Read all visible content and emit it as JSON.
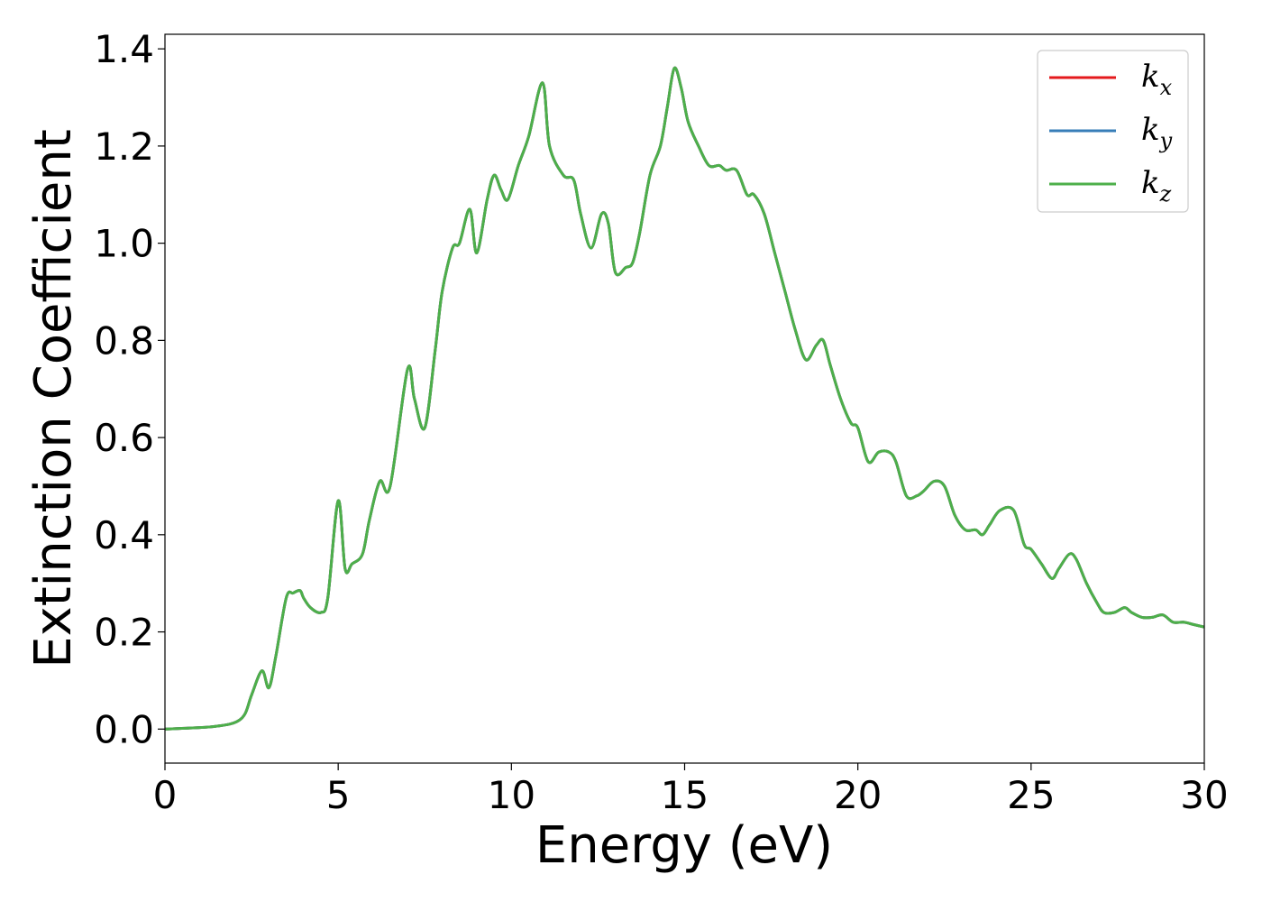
{
  "chart_data": {
    "type": "line",
    "title": "",
    "xlabel": "Energy (eV)",
    "ylabel": "Extinction Coefficient",
    "xlim": [
      0,
      30
    ],
    "ylim": [
      -0.07,
      1.43
    ],
    "xticks": [
      "0",
      "5",
      "10",
      "15",
      "20",
      "25",
      "30"
    ],
    "yticks": [
      "0.0",
      "0.2",
      "0.4",
      "0.6",
      "0.8",
      "1.0",
      "1.2",
      "1.4"
    ],
    "grid": false,
    "legend_position": "top-right",
    "series": [
      {
        "name": "k",
        "subscript": "x",
        "color": "#e41a1c",
        "x": [
          0,
          1,
          1.5,
          2,
          2.3,
          2.5,
          2.8,
          3.0,
          3.2,
          3.5,
          3.7,
          3.9,
          4.0,
          4.2,
          4.5,
          4.7,
          5.0,
          5.2,
          5.4,
          5.7,
          5.9,
          6.2,
          6.5,
          7.0,
          7.2,
          7.5,
          7.8,
          8.0,
          8.3,
          8.5,
          8.8,
          9.0,
          9.3,
          9.5,
          9.7,
          9.9,
          10.2,
          10.5,
          10.9,
          11.1,
          11.5,
          11.8,
          12.0,
          12.3,
          12.6,
          12.8,
          13.0,
          13.3,
          13.5,
          13.7,
          14.0,
          14.3,
          14.5,
          14.7,
          14.9,
          15.1,
          15.4,
          15.7,
          16.0,
          16.2,
          16.5,
          16.8,
          17.0,
          17.3,
          17.6,
          17.9,
          18.2,
          18.5,
          18.8,
          19.0,
          19.2,
          19.5,
          19.8,
          20.0,
          20.3,
          20.6,
          20.9,
          21.1,
          21.4,
          21.7,
          21.9,
          22.2,
          22.5,
          22.8,
          23.1,
          23.4,
          23.6,
          23.8,
          24.1,
          24.5,
          24.8,
          25.0,
          25.3,
          25.6,
          25.8,
          26.1,
          26.3,
          26.6,
          26.9,
          27.1,
          27.4,
          27.7,
          27.9,
          28.2,
          28.5,
          28.8,
          29.1,
          29.4,
          29.7,
          30.0
        ],
        "y": [
          0,
          0.003,
          0.006,
          0.013,
          0.03,
          0.07,
          0.12,
          0.085,
          0.15,
          0.27,
          0.28,
          0.285,
          0.27,
          0.25,
          0.24,
          0.27,
          0.47,
          0.33,
          0.34,
          0.36,
          0.43,
          0.51,
          0.5,
          0.74,
          0.68,
          0.62,
          0.78,
          0.9,
          0.99,
          1.0,
          1.07,
          0.98,
          1.09,
          1.14,
          1.11,
          1.09,
          1.16,
          1.22,
          1.33,
          1.2,
          1.14,
          1.13,
          1.06,
          0.99,
          1.06,
          1.04,
          0.94,
          0.95,
          0.96,
          1.02,
          1.14,
          1.2,
          1.28,
          1.36,
          1.32,
          1.25,
          1.2,
          1.16,
          1.16,
          1.15,
          1.15,
          1.1,
          1.1,
          1.06,
          0.98,
          0.9,
          0.82,
          0.76,
          0.79,
          0.8,
          0.75,
          0.68,
          0.63,
          0.62,
          0.55,
          0.57,
          0.57,
          0.55,
          0.48,
          0.48,
          0.49,
          0.51,
          0.5,
          0.44,
          0.41,
          0.41,
          0.4,
          0.42,
          0.45,
          0.45,
          0.38,
          0.37,
          0.34,
          0.31,
          0.33,
          0.36,
          0.35,
          0.3,
          0.26,
          0.24,
          0.24,
          0.25,
          0.24,
          0.23,
          0.23,
          0.235,
          0.22,
          0.22,
          0.215,
          0.21
        ]
      },
      {
        "name": "k",
        "subscript": "y",
        "color": "#377eb8",
        "x": [
          0,
          1,
          1.5,
          2,
          2.3,
          2.5,
          2.8,
          3.0,
          3.2,
          3.5,
          3.7,
          3.9,
          4.0,
          4.2,
          4.5,
          4.7,
          5.0,
          5.2,
          5.4,
          5.7,
          5.9,
          6.2,
          6.5,
          7.0,
          7.2,
          7.5,
          7.8,
          8.0,
          8.3,
          8.5,
          8.8,
          9.0,
          9.3,
          9.5,
          9.7,
          9.9,
          10.2,
          10.5,
          10.9,
          11.1,
          11.5,
          11.8,
          12.0,
          12.3,
          12.6,
          12.8,
          13.0,
          13.3,
          13.5,
          13.7,
          14.0,
          14.3,
          14.5,
          14.7,
          14.9,
          15.1,
          15.4,
          15.7,
          16.0,
          16.2,
          16.5,
          16.8,
          17.0,
          17.3,
          17.6,
          17.9,
          18.2,
          18.5,
          18.8,
          19.0,
          19.2,
          19.5,
          19.8,
          20.0,
          20.3,
          20.6,
          20.9,
          21.1,
          21.4,
          21.7,
          21.9,
          22.2,
          22.5,
          22.8,
          23.1,
          23.4,
          23.6,
          23.8,
          24.1,
          24.5,
          24.8,
          25.0,
          25.3,
          25.6,
          25.8,
          26.1,
          26.3,
          26.6,
          26.9,
          27.1,
          27.4,
          27.7,
          27.9,
          28.2,
          28.5,
          28.8,
          29.1,
          29.4,
          29.7,
          30.0
        ],
        "y": [
          0,
          0.003,
          0.006,
          0.013,
          0.03,
          0.07,
          0.12,
          0.085,
          0.15,
          0.27,
          0.28,
          0.285,
          0.27,
          0.25,
          0.24,
          0.27,
          0.47,
          0.33,
          0.34,
          0.36,
          0.43,
          0.51,
          0.5,
          0.74,
          0.68,
          0.62,
          0.78,
          0.9,
          0.99,
          1.0,
          1.07,
          0.98,
          1.09,
          1.14,
          1.11,
          1.09,
          1.16,
          1.22,
          1.33,
          1.2,
          1.14,
          1.13,
          1.06,
          0.99,
          1.06,
          1.04,
          0.94,
          0.95,
          0.96,
          1.02,
          1.14,
          1.2,
          1.28,
          1.36,
          1.32,
          1.25,
          1.2,
          1.16,
          1.16,
          1.15,
          1.15,
          1.1,
          1.1,
          1.06,
          0.98,
          0.9,
          0.82,
          0.76,
          0.79,
          0.8,
          0.75,
          0.68,
          0.63,
          0.62,
          0.55,
          0.57,
          0.57,
          0.55,
          0.48,
          0.48,
          0.49,
          0.51,
          0.5,
          0.44,
          0.41,
          0.41,
          0.4,
          0.42,
          0.45,
          0.45,
          0.38,
          0.37,
          0.34,
          0.31,
          0.33,
          0.36,
          0.35,
          0.3,
          0.26,
          0.24,
          0.24,
          0.25,
          0.24,
          0.23,
          0.23,
          0.235,
          0.22,
          0.22,
          0.215,
          0.21
        ]
      },
      {
        "name": "k",
        "subscript": "z",
        "color": "#4daf4a",
        "x": [
          0,
          1,
          1.5,
          2,
          2.3,
          2.5,
          2.8,
          3.0,
          3.2,
          3.5,
          3.7,
          3.9,
          4.0,
          4.2,
          4.5,
          4.7,
          5.0,
          5.2,
          5.4,
          5.7,
          5.9,
          6.2,
          6.5,
          7.0,
          7.2,
          7.5,
          7.8,
          8.0,
          8.3,
          8.5,
          8.8,
          9.0,
          9.3,
          9.5,
          9.7,
          9.9,
          10.2,
          10.5,
          10.9,
          11.1,
          11.5,
          11.8,
          12.0,
          12.3,
          12.6,
          12.8,
          13.0,
          13.3,
          13.5,
          13.7,
          14.0,
          14.3,
          14.5,
          14.7,
          14.9,
          15.1,
          15.4,
          15.7,
          16.0,
          16.2,
          16.5,
          16.8,
          17.0,
          17.3,
          17.6,
          17.9,
          18.2,
          18.5,
          18.8,
          19.0,
          19.2,
          19.5,
          19.8,
          20.0,
          20.3,
          20.6,
          20.9,
          21.1,
          21.4,
          21.7,
          21.9,
          22.2,
          22.5,
          22.8,
          23.1,
          23.4,
          23.6,
          23.8,
          24.1,
          24.5,
          24.8,
          25.0,
          25.3,
          25.6,
          25.8,
          26.1,
          26.3,
          26.6,
          26.9,
          27.1,
          27.4,
          27.7,
          27.9,
          28.2,
          28.5,
          28.8,
          29.1,
          29.4,
          29.7,
          30.0
        ],
        "y": [
          0,
          0.003,
          0.006,
          0.013,
          0.03,
          0.07,
          0.12,
          0.085,
          0.15,
          0.27,
          0.28,
          0.285,
          0.27,
          0.25,
          0.24,
          0.27,
          0.47,
          0.33,
          0.34,
          0.36,
          0.43,
          0.51,
          0.5,
          0.74,
          0.68,
          0.62,
          0.78,
          0.9,
          0.99,
          1.0,
          1.07,
          0.98,
          1.09,
          1.14,
          1.11,
          1.09,
          1.16,
          1.22,
          1.33,
          1.2,
          1.14,
          1.13,
          1.06,
          0.99,
          1.06,
          1.04,
          0.94,
          0.95,
          0.96,
          1.02,
          1.14,
          1.2,
          1.28,
          1.36,
          1.32,
          1.25,
          1.2,
          1.16,
          1.16,
          1.15,
          1.15,
          1.1,
          1.1,
          1.06,
          0.98,
          0.9,
          0.82,
          0.76,
          0.79,
          0.8,
          0.75,
          0.68,
          0.63,
          0.62,
          0.55,
          0.57,
          0.57,
          0.55,
          0.48,
          0.48,
          0.49,
          0.51,
          0.5,
          0.44,
          0.41,
          0.41,
          0.4,
          0.42,
          0.45,
          0.45,
          0.38,
          0.37,
          0.34,
          0.31,
          0.33,
          0.36,
          0.35,
          0.3,
          0.26,
          0.24,
          0.24,
          0.25,
          0.24,
          0.23,
          0.23,
          0.235,
          0.22,
          0.22,
          0.215,
          0.21
        ]
      }
    ]
  }
}
